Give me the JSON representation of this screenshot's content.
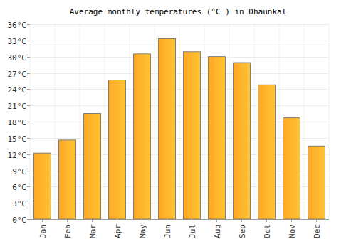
{
  "chart_data": {
    "type": "bar",
    "title": "Average monthly temperatures (°C ) in Dhaunkal",
    "categories": [
      "Jan",
      "Feb",
      "Mar",
      "Apr",
      "May",
      "Jun",
      "Jul",
      "Aug",
      "Sep",
      "Oct",
      "Nov",
      "Dec"
    ],
    "values": [
      12.2,
      14.6,
      19.5,
      25.7,
      30.5,
      33.3,
      30.9,
      30.0,
      28.9,
      24.8,
      18.7,
      13.5
    ],
    "color": "#ffa726",
    "ylim": [
      0,
      36
    ],
    "yticks": [
      {
        "value": 0,
        "label": "0°C"
      },
      {
        "value": 3,
        "label": "3°C"
      },
      {
        "value": 6,
        "label": "6°C"
      },
      {
        "value": 9,
        "label": "9°C"
      },
      {
        "value": 12,
        "label": "12°C"
      },
      {
        "value": 15,
        "label": "15°C"
      },
      {
        "value": 18,
        "label": "18°C"
      },
      {
        "value": 21,
        "label": "21°C"
      },
      {
        "value": 24,
        "label": "24°C"
      },
      {
        "value": 27,
        "label": "27°C"
      },
      {
        "value": 30,
        "label": "30°C"
      },
      {
        "value": 33,
        "label": "33°C"
      },
      {
        "value": 36,
        "label": "36°C"
      }
    ],
    "grid": true
  }
}
